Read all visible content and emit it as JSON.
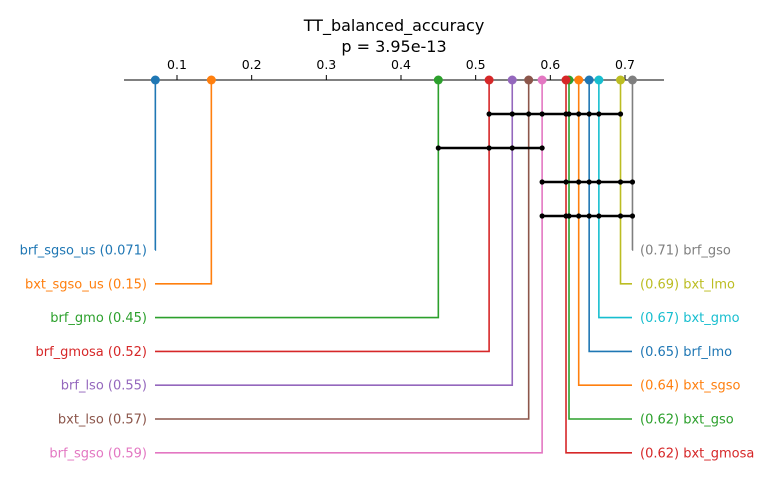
{
  "chart_data": {
    "type": "critical-difference",
    "title": "TT_balanced_accuracy",
    "subtitle": "p = 3.95e-13",
    "axis": {
      "position": "top",
      "range": [
        0.035,
        0.76
      ],
      "ticks": [
        0.1,
        0.2,
        0.3,
        0.4,
        0.5,
        0.6,
        0.7
      ],
      "tick_labels": [
        "0.1",
        "0.2",
        "0.3",
        "0.4",
        "0.5",
        "0.6",
        "0.7"
      ]
    },
    "methods": [
      {
        "name": "brf_sgso_us",
        "value": 0.071,
        "label": "brf_sgso_us (0.071)",
        "side": "left",
        "color": "#1f77b4"
      },
      {
        "name": "bxt_sgso_us",
        "value": 0.146,
        "label": "bxt_sgso_us (0.15)",
        "side": "left",
        "color": "#ff7f0e"
      },
      {
        "name": "brf_gmo",
        "value": 0.45,
        "label": "brf_gmo (0.45)",
        "side": "left",
        "color": "#2ca02c"
      },
      {
        "name": "brf_gmosa",
        "value": 0.518,
        "label": "brf_gmosa (0.52)",
        "side": "left",
        "color": "#d62728"
      },
      {
        "name": "brf_lso",
        "value": 0.549,
        "label": "brf_lso (0.55)",
        "side": "left",
        "color": "#9467bd"
      },
      {
        "name": "bxt_lso",
        "value": 0.571,
        "label": "bxt_lso (0.57)",
        "side": "left",
        "color": "#8c564b"
      },
      {
        "name": "brf_sgso",
        "value": 0.589,
        "label": "brf_sgso (0.59)",
        "side": "left",
        "color": "#e377c2"
      },
      {
        "name": "brf_gso",
        "value": 0.71,
        "label": "(0.71) brf_gso",
        "side": "right",
        "color": "#7f7f7f"
      },
      {
        "name": "bxt_lmo",
        "value": 0.694,
        "label": "(0.69) bxt_lmo",
        "side": "right",
        "color": "#bcbd22"
      },
      {
        "name": "bxt_gmo",
        "value": 0.665,
        "label": "(0.67) bxt_gmo",
        "side": "right",
        "color": "#17becf"
      },
      {
        "name": "brf_lmo",
        "value": 0.652,
        "label": "(0.65) brf_lmo",
        "side": "right",
        "color": "#1f77b4"
      },
      {
        "name": "bxt_sgso",
        "value": 0.638,
        "label": "(0.64) bxt_sgso",
        "side": "right",
        "color": "#ff7f0e"
      },
      {
        "name": "bxt_gso",
        "value": 0.625,
        "label": "(0.62) bxt_gso",
        "side": "right",
        "color": "#2ca02c"
      },
      {
        "name": "bxt_gmosa",
        "value": 0.621,
        "label": "(0.62) bxt_gmosa",
        "side": "right",
        "color": "#d62728"
      }
    ],
    "cliques": [
      [
        "brf_gmosa",
        "brf_lso",
        "bxt_lso",
        "brf_sgso",
        "bxt_gmosa",
        "bxt_gso",
        "bxt_sgso",
        "brf_lmo",
        "bxt_gmo",
        "bxt_lmo"
      ],
      [
        "brf_gmo",
        "brf_gmosa",
        "brf_lso",
        "brf_sgso"
      ],
      [
        "brf_sgso",
        "bxt_gmosa",
        "bxt_sgso",
        "brf_lmo",
        "bxt_gmo",
        "bxt_lmo",
        "brf_gso"
      ],
      [
        "brf_sgso",
        "bxt_gmosa",
        "bxt_gso",
        "bxt_sgso",
        "brf_lmo",
        "bxt_gmo",
        "bxt_lmo",
        "brf_gso"
      ]
    ]
  }
}
